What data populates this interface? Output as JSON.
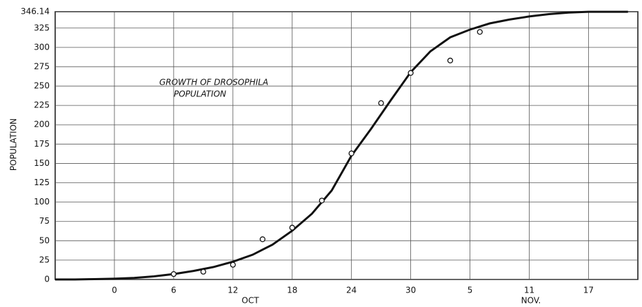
{
  "chart_data": {
    "type": "line",
    "title": [
      "GROWTH OF DROSOPHILA",
      "POPULATION"
    ],
    "ylabel": "POPULATION",
    "annotations": [
      "OCT",
      "NOV."
    ],
    "xlim": [
      -6,
      53
    ],
    "xticks": [
      0,
      6,
      12,
      18,
      24,
      30,
      {
        "value": 36,
        "label": "5"
      },
      {
        "value": 42,
        "label": "11"
      },
      {
        "value": 48,
        "label": "17"
      }
    ],
    "ylim": [
      0,
      346.14
    ],
    "yticks": [
      0,
      25,
      50,
      75,
      100,
      125,
      150,
      175,
      200,
      225,
      250,
      275,
      300,
      325,
      346.14
    ],
    "grid": true,
    "series": [
      {
        "type": "line",
        "color": "#111111",
        "x": [
          -6,
          -4,
          -2,
          0,
          2,
          4,
          6,
          8,
          10,
          12,
          14,
          16,
          18,
          20,
          22,
          24,
          26,
          28,
          30,
          32,
          34,
          36,
          38,
          40,
          42,
          44,
          46,
          48,
          50,
          52
        ],
        "values": [
          0,
          0,
          0.5,
          1,
          2,
          4,
          7,
          11,
          16,
          23,
          32,
          45,
          63,
          85,
          115,
          160,
          195,
          232,
          268,
          295,
          313,
          323,
          331,
          336,
          340,
          343,
          345,
          346,
          346,
          346
        ]
      },
      {
        "type": "scatter",
        "color": "#111111",
        "x": [
          6,
          9,
          12,
          15,
          18,
          21,
          24,
          27,
          30,
          34,
          37
        ],
        "values": [
          7,
          10,
          19,
          52,
          67,
          102,
          163,
          228,
          267,
          283,
          320
        ]
      }
    ]
  }
}
